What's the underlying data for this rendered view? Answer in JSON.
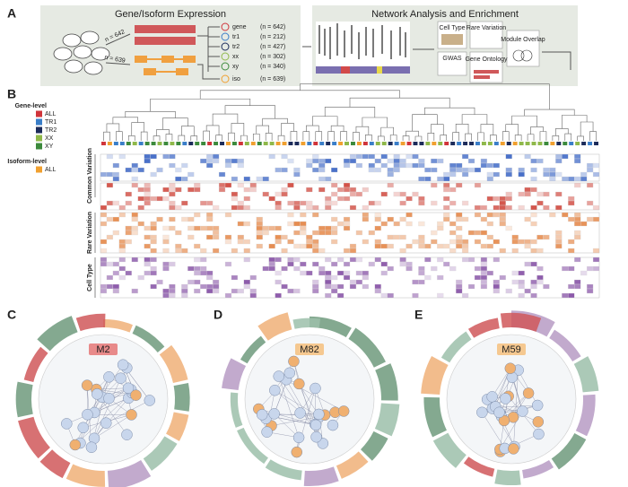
{
  "panels": {
    "a": "A",
    "b": "B",
    "c": "C",
    "d": "D",
    "e": "E"
  },
  "expression": {
    "title": "Gene/Isoform Expression",
    "arrow_labels": [
      "n = 642",
      "n = 639"
    ],
    "sets": [
      {
        "name": "gene",
        "count": "(n = 642)"
      },
      {
        "name": "tr1",
        "count": "(n = 212)"
      },
      {
        "name": "tr2",
        "count": "(n = 427)"
      },
      {
        "name": "xx",
        "count": "(n = 302)"
      },
      {
        "name": "xy",
        "count": "(n = 340)"
      },
      {
        "name": "iso",
        "count": "(n = 639)"
      }
    ]
  },
  "network": {
    "title": "Network Analysis and Enrichment",
    "boxes": [
      "Cell Type",
      "Rare Variation",
      "GWAS",
      "Gene Ontology",
      "Module Overlap"
    ]
  },
  "legend": {
    "gene_level": "Gene-level",
    "gene_items": [
      {
        "name": "ALL",
        "color": "#d0343a"
      },
      {
        "name": "TR1",
        "color": "#3a7ec8"
      },
      {
        "name": "TR2",
        "color": "#1c2b5a"
      },
      {
        "name": "XX",
        "color": "#8fb84a"
      },
      {
        "name": "XY",
        "color": "#3c8a3c"
      }
    ],
    "isoform_level": "Isoform-level",
    "isoform_items": [
      {
        "name": "ALL",
        "color": "#f0a030"
      }
    ]
  },
  "row_groups": [
    "Common Variation",
    "Rare Variation",
    "Cell Type"
  ],
  "modules": [
    "M2",
    "M82",
    "M59"
  ]
}
